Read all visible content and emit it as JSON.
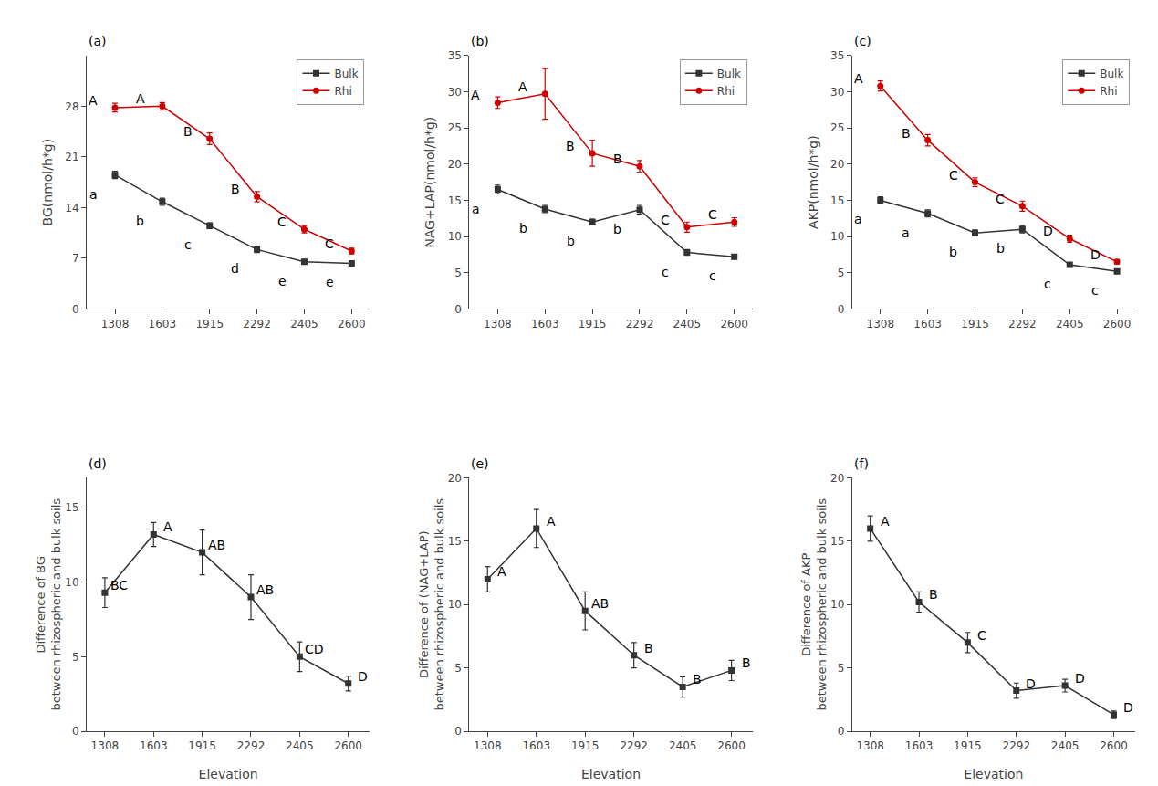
{
  "chart_data": [
    {
      "type": "line",
      "title": "(a)",
      "categories": [
        "1308",
        "1603",
        "1915",
        "2292",
        "2405",
        "2600"
      ],
      "series": [
        {
          "name": "Bulk",
          "color": "#333333",
          "marker": "square",
          "values": [
            18.5,
            14.8,
            11.5,
            8.2,
            6.5,
            6.3
          ],
          "errors": [
            0.5,
            0.5,
            0.4,
            0.4,
            0.3,
            0.3
          ],
          "labels": [
            "a",
            "b",
            "c",
            "d",
            "e",
            "e"
          ]
        },
        {
          "name": "Rhi",
          "color": "#cc0000",
          "marker": "circle",
          "values": [
            27.8,
            28.0,
            23.5,
            15.5,
            11.0,
            8.0
          ],
          "errors": [
            0.6,
            0.5,
            0.8,
            0.7,
            0.5,
            0.4
          ],
          "labels": [
            "A",
            "A",
            "B",
            "B",
            "C",
            "C"
          ]
        }
      ],
      "ylabel": "BG(nmol/h*g)",
      "ylim": [
        0,
        35
      ],
      "yticks": [
        0,
        7,
        14,
        21,
        28
      ],
      "legend": "upper right",
      "grid": false
    },
    {
      "type": "line",
      "title": "(b)",
      "categories": [
        "1308",
        "1603",
        "1915",
        "2292",
        "2405",
        "2600"
      ],
      "series": [
        {
          "name": "Bulk",
          "color": "#333333",
          "marker": "square",
          "values": [
            16.5,
            13.8,
            12.0,
            13.7,
            7.8,
            7.2
          ],
          "errors": [
            0.6,
            0.5,
            0.4,
            0.6,
            0.4,
            0.3
          ],
          "labels": [
            "a",
            "b",
            "b",
            "b",
            "c",
            "c"
          ]
        },
        {
          "name": "Rhi",
          "color": "#cc0000",
          "marker": "circle",
          "values": [
            28.5,
            29.7,
            21.5,
            19.7,
            11.3,
            12.0
          ],
          "errors": [
            0.8,
            3.5,
            1.8,
            0.8,
            0.7,
            0.6
          ],
          "labels": [
            "A",
            "A",
            "B",
            "B",
            "C",
            "C"
          ]
        }
      ],
      "ylabel": "NAG+LAP(nmol/h*g)",
      "ylim": [
        0,
        35
      ],
      "yticks": [
        0,
        5,
        10,
        15,
        20,
        25,
        30,
        35
      ],
      "legend": "upper right",
      "grid": false
    },
    {
      "type": "line",
      "title": "(c)",
      "categories": [
        "1308",
        "1603",
        "1915",
        "2292",
        "2405",
        "2600"
      ],
      "series": [
        {
          "name": "Bulk",
          "color": "#333333",
          "marker": "square",
          "values": [
            15.0,
            13.2,
            10.5,
            11.0,
            6.1,
            5.2
          ],
          "errors": [
            0.5,
            0.5,
            0.4,
            0.5,
            0.3,
            0.3
          ],
          "labels": [
            "a",
            "a",
            "b",
            "b",
            "c",
            "c"
          ]
        },
        {
          "name": "Rhi",
          "color": "#cc0000",
          "marker": "circle",
          "values": [
            30.8,
            23.3,
            17.5,
            14.2,
            9.7,
            6.5
          ],
          "errors": [
            0.7,
            0.8,
            0.6,
            0.7,
            0.5,
            0.3
          ],
          "labels": [
            "A",
            "B",
            "C",
            "C",
            "D",
            "D"
          ]
        }
      ],
      "ylabel": "AKP(nmol/h*g)",
      "ylim": [
        0,
        35
      ],
      "yticks": [
        0,
        5,
        10,
        15,
        20,
        25,
        30,
        35
      ],
      "legend": "upper right",
      "grid": false
    },
    {
      "type": "line",
      "title": "(d)",
      "categories": [
        "1308",
        "1603",
        "1915",
        "2292",
        "2405",
        "2600"
      ],
      "series": [
        {
          "color": "#333333",
          "marker": "square",
          "values": [
            9.3,
            13.2,
            12.0,
            9.0,
            5.0,
            3.2
          ],
          "errors": [
            1.0,
            0.8,
            1.5,
            1.5,
            1.0,
            0.5
          ],
          "labels": [
            "BC",
            "A",
            "AB",
            "AB",
            "CD",
            "D"
          ]
        }
      ],
      "xlabel": "Elevation",
      "ylabel": "Difference of BG\nbetween rhizospheric and bulk soils",
      "ylim": [
        0,
        17
      ],
      "yticks": [
        0,
        5,
        10,
        15
      ],
      "grid": false
    },
    {
      "type": "line",
      "title": "(e)",
      "categories": [
        "1308",
        "1603",
        "1915",
        "2292",
        "2405",
        "2600"
      ],
      "series": [
        {
          "color": "#333333",
          "marker": "square",
          "values": [
            12.0,
            16.0,
            9.5,
            6.0,
            3.5,
            4.8
          ],
          "errors": [
            1.0,
            1.5,
            1.5,
            1.0,
            0.8,
            0.8
          ],
          "labels": [
            "A",
            "A",
            "AB",
            "B",
            "B",
            "B"
          ]
        }
      ],
      "xlabel": "Elevation",
      "ylabel": "Difference of (NAG+LAP)\nbetween rhizospheric and bulk soils",
      "ylim": [
        0,
        20
      ],
      "yticks": [
        0,
        5,
        10,
        15,
        20
      ],
      "grid": false
    },
    {
      "type": "line",
      "title": "(f)",
      "categories": [
        "1308",
        "1603",
        "1915",
        "2292",
        "2405",
        "2600"
      ],
      "series": [
        {
          "color": "#333333",
          "marker": "square",
          "values": [
            16.0,
            10.2,
            7.0,
            3.2,
            3.6,
            1.3
          ],
          "errors": [
            1.0,
            0.8,
            0.8,
            0.6,
            0.5,
            0.3
          ],
          "labels": [
            "A",
            "B",
            "C",
            "D",
            "D",
            "D"
          ]
        }
      ],
      "xlabel": "Elevation",
      "ylabel": "Difference of AKP\nbetween rhizospheric and bulk soils",
      "ylim": [
        0,
        20
      ],
      "yticks": [
        0,
        5,
        10,
        15,
        20
      ],
      "grid": false
    }
  ]
}
